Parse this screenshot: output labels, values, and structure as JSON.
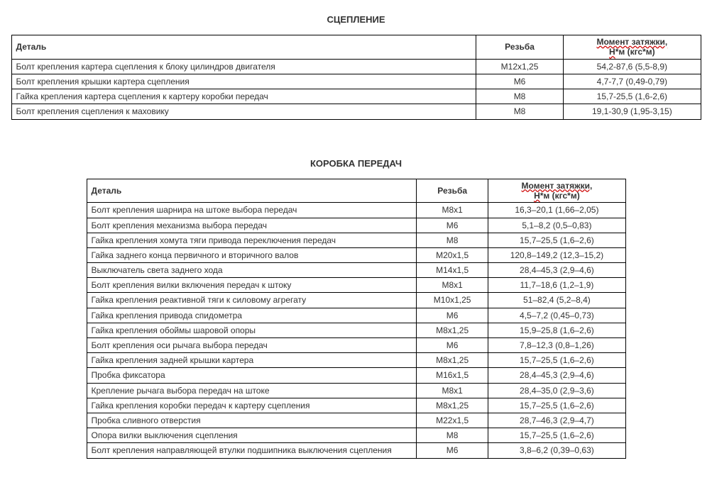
{
  "section1": {
    "title": "СЦЕПЛЕНИЕ",
    "headers": {
      "detail": "Деталь",
      "thread": "Резьба",
      "torque_l1": "Момент затяжки,",
      "torque_l2a": "Н",
      "torque_l2b": "*м (кгс*м)"
    },
    "rows": [
      {
        "detail": "Болт крепления картера сцепления к блоку цилиндров двигателя",
        "thread": "М12х1,25",
        "torque": "54,2-87,6 (5,5-8,9)"
      },
      {
        "detail": "Болт крепления крышки картера сцепления",
        "thread": "М6",
        "torque": "4,7-7,7 (0,49-0,79)"
      },
      {
        "detail": "Гайка крепления картера сцепления к картеру коробки передач",
        "thread": "М8",
        "torque": "15,7-25,5 (1,6-2,6)"
      },
      {
        "detail": "Болт крепления сцепления к маховику",
        "thread": "М8",
        "torque": "19,1-30,9 (1,95-3,15)"
      }
    ]
  },
  "section2": {
    "title": "КОРОБКА ПЕРЕДАЧ",
    "headers": {
      "detail": "Деталь",
      "thread": "Резьба",
      "torque_l1": "Момент затяжки,",
      "torque_l2a": "Н",
      "torque_l2b": "*м (кгс*м)"
    },
    "rows": [
      {
        "detail": "Болт крепления шарнира на штоке выбора передач",
        "thread": "М8х1",
        "torque": "16,3–20,1 (1,66–2,05)"
      },
      {
        "detail": "Болт крепления механизма выбора передач",
        "thread": "М6",
        "torque": "5,1–8,2 (0,5–0,83)"
      },
      {
        "detail": "Гайка крепления хомута тяги привода переключения передач",
        "thread": "М8",
        "torque": "15,7–25,5 (1,6–2,6)"
      },
      {
        "detail": "Гайка заднего конца первичного и вторичного валов",
        "thread": "М20х1,5",
        "torque": "120,8–149,2 (12,3–15,2)"
      },
      {
        "detail": "Выключатель света заднего хода",
        "thread": "М14х1,5",
        "torque": "28,4–45,3 (2,9–4,6)"
      },
      {
        "detail": "Болт крепления вилки включения передач к штоку",
        "thread": "М8х1",
        "torque": "11,7–18,6 (1,2–1,9)"
      },
      {
        "detail": "Гайка крепления реактивной тяги к силовому агрегату",
        "thread": "М10х1,25",
        "torque": "51–82,4 (5,2–8,4)"
      },
      {
        "detail": "Гайка крепления привода спидометра",
        "thread": "М6",
        "torque": "4,5–7,2 (0,45–0,73)"
      },
      {
        "detail": "Гайка крепления обоймы шаровой опоры",
        "thread": "М8х1,25",
        "torque": "15,9–25,8 (1,6–2,6)"
      },
      {
        "detail": "Болт крепления оси рычага выбора передач",
        "thread": "М6",
        "torque": "7,8–12,3 (0,8–1,26)"
      },
      {
        "detail": "Гайка крепления задней крышки картера",
        "thread": "М8х1,25",
        "torque": "15,7–25,5 (1,6–2,6)"
      },
      {
        "detail": "Пробка фиксатора",
        "thread": "М16х1,5",
        "torque": "28,4–45,3 (2,9–4,6)"
      },
      {
        "detail": "Крепление рычага выбора передач на штоке",
        "thread": "М8х1",
        "torque": "28,4–35,0 (2,9–3,6)"
      },
      {
        "detail": "Гайка крепления коробки передач к картеру сцепления",
        "thread": "М8х1,25",
        "torque": "15,7–25,5 (1,6–2,6)"
      },
      {
        "detail": "Пробка сливного отверстия",
        "thread": "М22х1,5",
        "torque": "28,7–46,3 (2,9–4,7)"
      },
      {
        "detail": "Опора вилки выключения сцепления",
        "thread": "М8",
        "torque": "15,7–25,5 (1,6–2,6)"
      },
      {
        "detail": "Болт крепления направляющей втулки подшипника выключения сцепления",
        "thread": "М6",
        "torque": "3,8–6,2 (0,39–0,63)"
      }
    ]
  }
}
